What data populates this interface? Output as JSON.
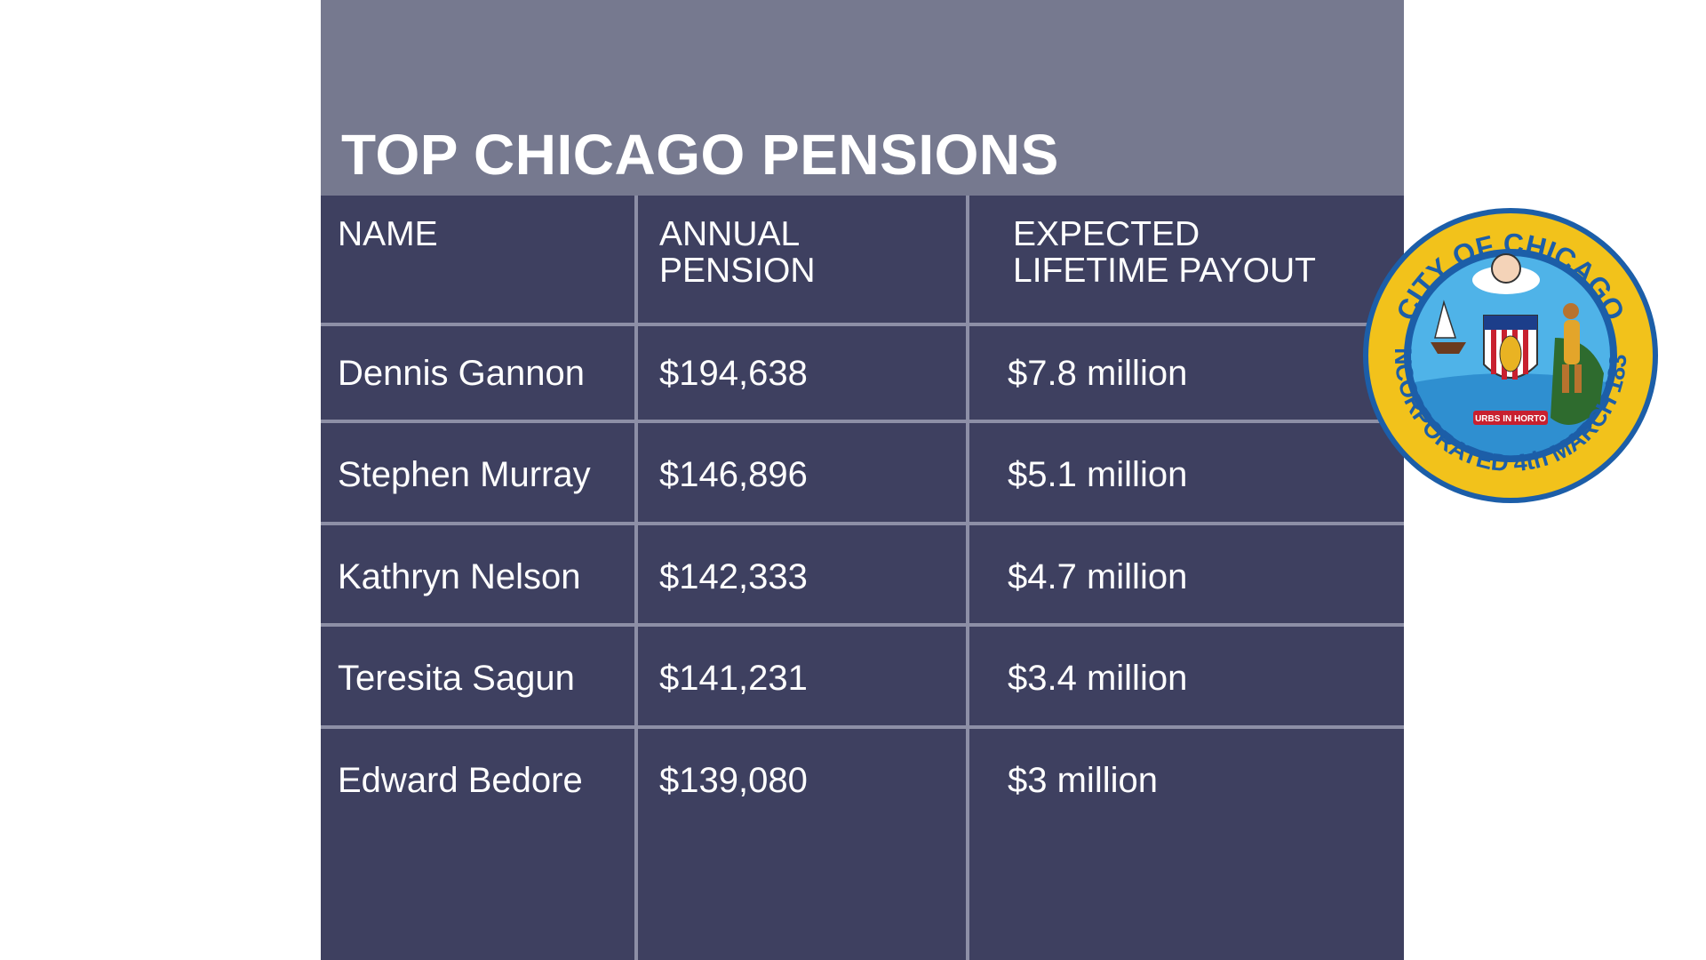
{
  "title": "TOP CHICAGO PENSIONS",
  "columns": {
    "name": "NAME",
    "annual_line1": "ANNUAL",
    "annual_line2": "PENSION",
    "lifetime_line1": "EXPECTED",
    "lifetime_line2": "LIFETIME PAYOUT"
  },
  "rows": [
    {
      "name": "Dennis Gannon",
      "annual": "$194,638",
      "lifetime": "$7.8 million"
    },
    {
      "name": "Stephen Murray",
      "annual": "$146,896",
      "lifetime": "$5.1 million"
    },
    {
      "name": "Kathryn Nelson",
      "annual": "$142,333",
      "lifetime": "$4.7 million"
    },
    {
      "name": "Teresita Sagun",
      "annual": "$141,231",
      "lifetime": "$3.4 million"
    },
    {
      "name": "Edward Bedore",
      "annual": "$139,080",
      "lifetime": "$3 million"
    }
  ],
  "seal": {
    "top_text": "CITY OF CHICAGO",
    "bottom_text": "INCORPORATED 4th MARCH 1837",
    "motto": "URBS IN HORTO"
  },
  "colors": {
    "panel": "#3e4060",
    "header": "#76798f",
    "grid": "#8d8fa6",
    "seal_blue": "#1c5ea8",
    "seal_gold": "#f2c21b"
  }
}
